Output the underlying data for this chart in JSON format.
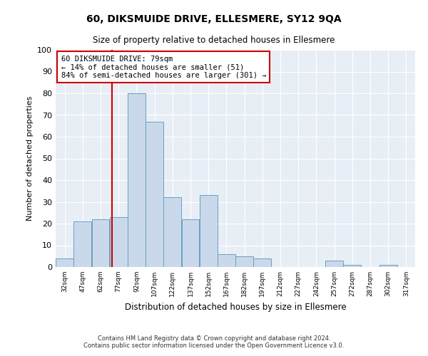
{
  "title": "60, DIKSMUIDE DRIVE, ELLESMERE, SY12 9QA",
  "subtitle": "Size of property relative to detached houses in Ellesmere",
  "xlabel": "Distribution of detached houses by size in Ellesmere",
  "ylabel": "Number of detached properties",
  "bar_color": "#c9d9eb",
  "bar_edge_color": "#6a9fc0",
  "property_line_x": 79,
  "property_line_color": "#cc0000",
  "annotation_text": "60 DIKSMUIDE DRIVE: 79sqm\n← 14% of detached houses are smaller (51)\n84% of semi-detached houses are larger (301) →",
  "annotation_box_color": "#cc0000",
  "bin_edges": [
    32,
    47,
    62,
    77,
    92,
    107,
    122,
    137,
    152,
    167,
    182,
    197,
    212,
    227,
    242,
    257,
    272,
    287,
    302,
    317,
    332
  ],
  "bin_counts": [
    4,
    21,
    22,
    23,
    80,
    67,
    32,
    22,
    33,
    6,
    5,
    4,
    0,
    0,
    0,
    3,
    1,
    0,
    1,
    0
  ],
  "ylim": [
    0,
    100
  ],
  "yticks": [
    0,
    10,
    20,
    30,
    40,
    50,
    60,
    70,
    80,
    90,
    100
  ],
  "footer_text": "Contains HM Land Registry data © Crown copyright and database right 2024.\nContains public sector information licensed under the Open Government Licence v3.0.",
  "fig_background_color": "#ffffff",
  "plot_background_color": "#e8eef5"
}
